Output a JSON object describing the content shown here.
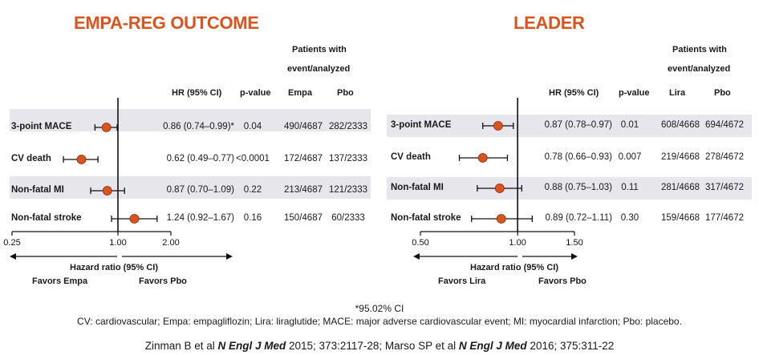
{
  "chart_data": [
    {
      "type": "forest",
      "title": "EMPA-REG OUTCOME",
      "header_group": "Patients with event/analyzed",
      "header_group_line1": "Patients with",
      "header_group_line2": "event/analyzed",
      "columns": [
        "HR (95% CI)",
        "p-value",
        "Empa",
        "Pbo"
      ],
      "xlabel": "Hazard ratio (95% CI)",
      "scale": "log",
      "xlim": [
        0.25,
        2.0
      ],
      "ticks": [
        0.25,
        1.0,
        2.0
      ],
      "tick_labels": [
        "0.25",
        "1.00",
        "2.00"
      ],
      "favors_left": "Favors Empa",
      "favors_right": "Favors Pbo",
      "rows": [
        {
          "label": "3-point MACE",
          "hr": 0.86,
          "lo": 0.74,
          "hi": 0.99,
          "hr_text": "0.86 (0.74–0.99)*",
          "p": "0.04",
          "a": "490/4687",
          "b": "282/2333",
          "shaded": true
        },
        {
          "label": "CV death",
          "hr": 0.62,
          "lo": 0.49,
          "hi": 0.77,
          "hr_text": "0.62 (0.49–0.77)",
          "p": "<0.0001",
          "a": "172/4687",
          "b": "137/2333",
          "shaded": false
        },
        {
          "label": "Non-fatal MI",
          "hr": 0.87,
          "lo": 0.7,
          "hi": 1.09,
          "hr_text": "0.87 (0.70–1.09)",
          "p": "0.22",
          "a": "213/4687",
          "b": "121/2333",
          "shaded": true
        },
        {
          "label": "Non-fatal stroke",
          "hr": 1.24,
          "lo": 0.92,
          "hi": 1.67,
          "hr_text": "1.24 (0.92–1.67)",
          "p": "0.16",
          "a": "150/4687",
          "b": "60/2333",
          "shaded": false
        }
      ]
    },
    {
      "type": "forest",
      "title": "LEADER",
      "header_group": "Patients with event/analyzed",
      "header_group_line1": "Patients with",
      "header_group_line2": "event/analyzed",
      "columns": [
        "HR (95% CI)",
        "p-value",
        "Lira",
        "Pbo"
      ],
      "xlabel": "Hazard ratio (95% CI)",
      "scale": "log",
      "xlim": [
        0.5,
        1.5
      ],
      "ticks": [
        0.5,
        1.0,
        1.5
      ],
      "tick_labels": [
        "0.50",
        "1.00",
        "1.50"
      ],
      "favors_left": "Favors Lira",
      "favors_right": "Favors Pbo",
      "rows": [
        {
          "label": "3-point MACE",
          "hr": 0.87,
          "lo": 0.78,
          "hi": 0.97,
          "hr_text": "0.87 (0.78–0.97)",
          "p": "0.01",
          "a": "608/4668",
          "b": "694/4672",
          "shaded": true
        },
        {
          "label": "CV death",
          "hr": 0.78,
          "lo": 0.66,
          "hi": 0.93,
          "hr_text": "0.78 (0.66–0.93)",
          "p": "0.007",
          "a": "219/4668",
          "b": "278/4672",
          "shaded": false
        },
        {
          "label": "Non-fatal MI",
          "hr": 0.88,
          "lo": 0.75,
          "hi": 1.03,
          "hr_text": "0.88 (0.75–1.03)",
          "p": "0.11",
          "a": "281/4668",
          "b": "317/4672",
          "shaded": true
        },
        {
          "label": "Non-fatal stroke",
          "hr": 0.89,
          "lo": 0.72,
          "hi": 1.11,
          "hr_text": "0.89 (0.72–1.11)",
          "p": "0.30",
          "a": "159/4668",
          "b": "177/4672",
          "shaded": false
        }
      ]
    }
  ],
  "colors": {
    "title": "#d9541e",
    "marker": "#d9541e",
    "row_shade": "#e6e6ec"
  },
  "footnote": {
    "asterisk": "*95.02% CI",
    "abbreviations": "CV: cardiovascular; Empa: empagliflozin; Lira: liraglutide; MACE: major adverse cardiovascular event; MI: myocardial infarction; Pbo: placebo."
  },
  "reference": {
    "part1": "Zinman B et al ",
    "journal1": "N Engl J Med",
    "part2": " 2015; 373:2117-28; Marso SP et al ",
    "journal2": "N Engl J Med",
    "part3": " 2016; 375:311-22"
  }
}
